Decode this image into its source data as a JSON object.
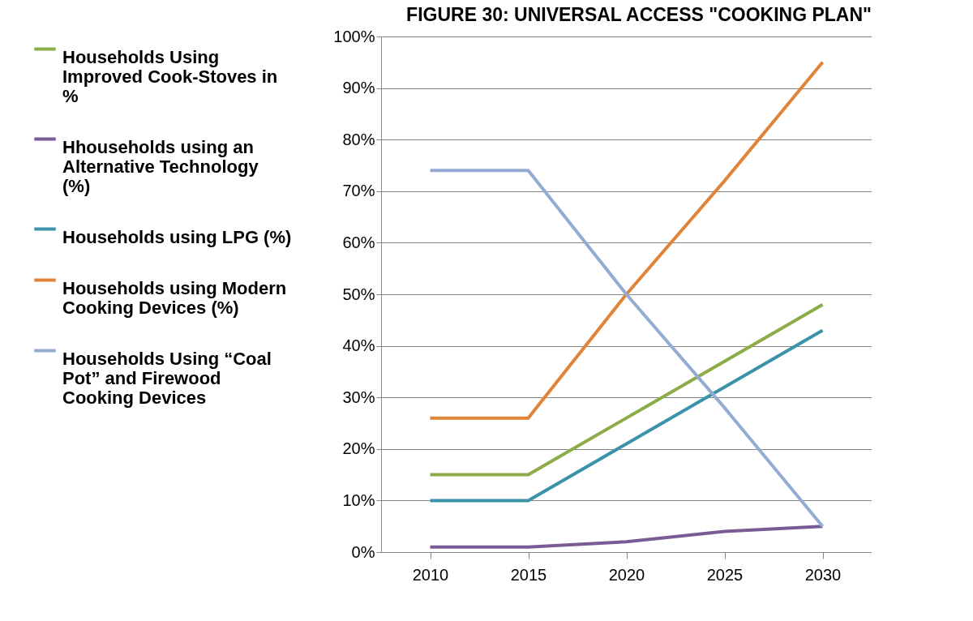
{
  "chart_data": {
    "type": "line",
    "title": "FIGURE 30: UNIVERSAL ACCESS \"COOKING PLAN\"",
    "categories": [
      "2010",
      "2015",
      "2020",
      "2025",
      "2030"
    ],
    "series": [
      {
        "name": "Households Using Improved Cook-Stoves in %",
        "color": "#8bac46",
        "values": [
          15,
          15,
          26,
          37,
          48
        ]
      },
      {
        "name": "Hhouseholds using an Alternative Technology (%)",
        "color": "#7a5c95",
        "values": [
          1,
          1,
          2,
          4,
          5
        ]
      },
      {
        "name": "Households using LPG (%)",
        "color": "#3a93aa",
        "values": [
          10,
          10,
          21,
          32,
          43
        ]
      },
      {
        "name": "Households using Modern Cooking Devices (%)",
        "color": "#e0843a",
        "values": [
          26,
          26,
          50,
          72,
          95
        ]
      },
      {
        "name": "Households Using “Coal Pot” and Firewood Cooking Devices",
        "color": "#94abd3",
        "values": [
          74,
          74,
          50,
          28,
          5
        ]
      }
    ],
    "ylim": [
      0,
      100
    ],
    "yticks": [
      {
        "value": 0,
        "label": "0%"
      },
      {
        "value": 10,
        "label": "10%"
      },
      {
        "value": 20,
        "label": "20%"
      },
      {
        "value": 30,
        "label": "30%"
      },
      {
        "value": 40,
        "label": "40%"
      },
      {
        "value": 50,
        "label": "50%"
      },
      {
        "value": 60,
        "label": "60%"
      },
      {
        "value": 70,
        "label": "70%"
      },
      {
        "value": 80,
        "label": "80%"
      },
      {
        "value": 90,
        "label": "90%"
      },
      {
        "value": 100,
        "label": "100%"
      }
    ],
    "grid": "y",
    "legend": "left",
    "marker": "none",
    "line_style": "solid"
  }
}
